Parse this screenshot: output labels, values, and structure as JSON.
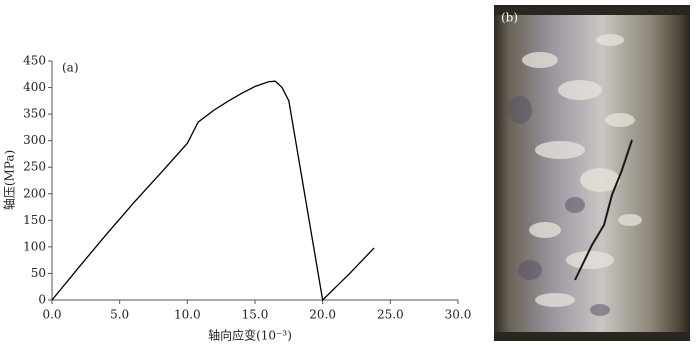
{
  "chart_data": {
    "type": "line",
    "panel_label": "(a)",
    "photo_label": "(b)",
    "xlabel": "轴向应变(10⁻³)",
    "ylabel": "轴压(MPa)",
    "x": [
      0,
      2,
      4,
      6,
      8,
      10,
      10.8,
      12,
      13,
      14,
      15,
      16,
      16.5,
      17,
      17.5,
      18,
      19,
      20,
      22,
      23.8
    ],
    "series": [
      {
        "color": "#000000",
        "values": [
          0,
          62,
          123,
          182,
          238,
          295,
          335,
          358,
          374,
          389,
          402,
          411,
          412,
          400,
          375,
          300,
          150,
          0,
          50,
          98
        ]
      }
    ],
    "xlim": [
      0,
      30
    ],
    "ylim": [
      0,
      450
    ],
    "xticks": [
      {
        "value": 0,
        "label": "0.0"
      },
      {
        "value": 5,
        "label": "5.0"
      },
      {
        "value": 10,
        "label": "10.0"
      },
      {
        "value": 15,
        "label": "15.0"
      },
      {
        "value": 20,
        "label": "20.0"
      },
      {
        "value": 25,
        "label": "25.0"
      },
      {
        "value": 30,
        "label": "30.0"
      }
    ],
    "yticks": [
      0,
      50,
      100,
      150,
      200,
      250,
      300,
      350,
      400,
      450
    ]
  }
}
